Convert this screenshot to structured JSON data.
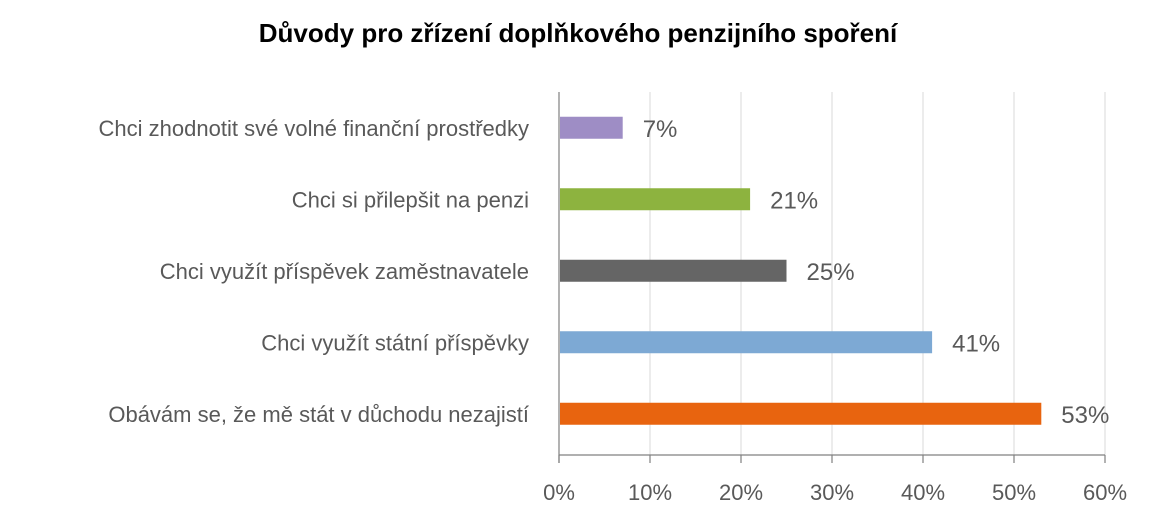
{
  "chart_data": {
    "type": "bar",
    "orientation": "horizontal",
    "title": "Důvody pro zřízení doplňkového penzijního spoření",
    "xlabel": "",
    "ylabel": "",
    "categories": [
      "Chci zhodnotit své volné finanční prostředky",
      "Chci si přilepšit na penzi",
      "Chci využít příspěvek zaměstnavatele",
      "Chci využít státní příspěvky",
      "Obávám se, že mě stát v důchodu nezajistí"
    ],
    "values": [
      7,
      21,
      25,
      41,
      53
    ],
    "value_labels": [
      "7%",
      "21%",
      "25%",
      "41%",
      "53%"
    ],
    "bar_colors": [
      "#9e8dc5",
      "#8db33f",
      "#656565",
      "#7da9d4",
      "#e8640f"
    ],
    "xlim": [
      0,
      60
    ],
    "x_ticks": [
      "0%",
      "10%",
      "20%",
      "30%",
      "40%",
      "50%",
      "60%"
    ],
    "grid": true,
    "legend": "none"
  }
}
